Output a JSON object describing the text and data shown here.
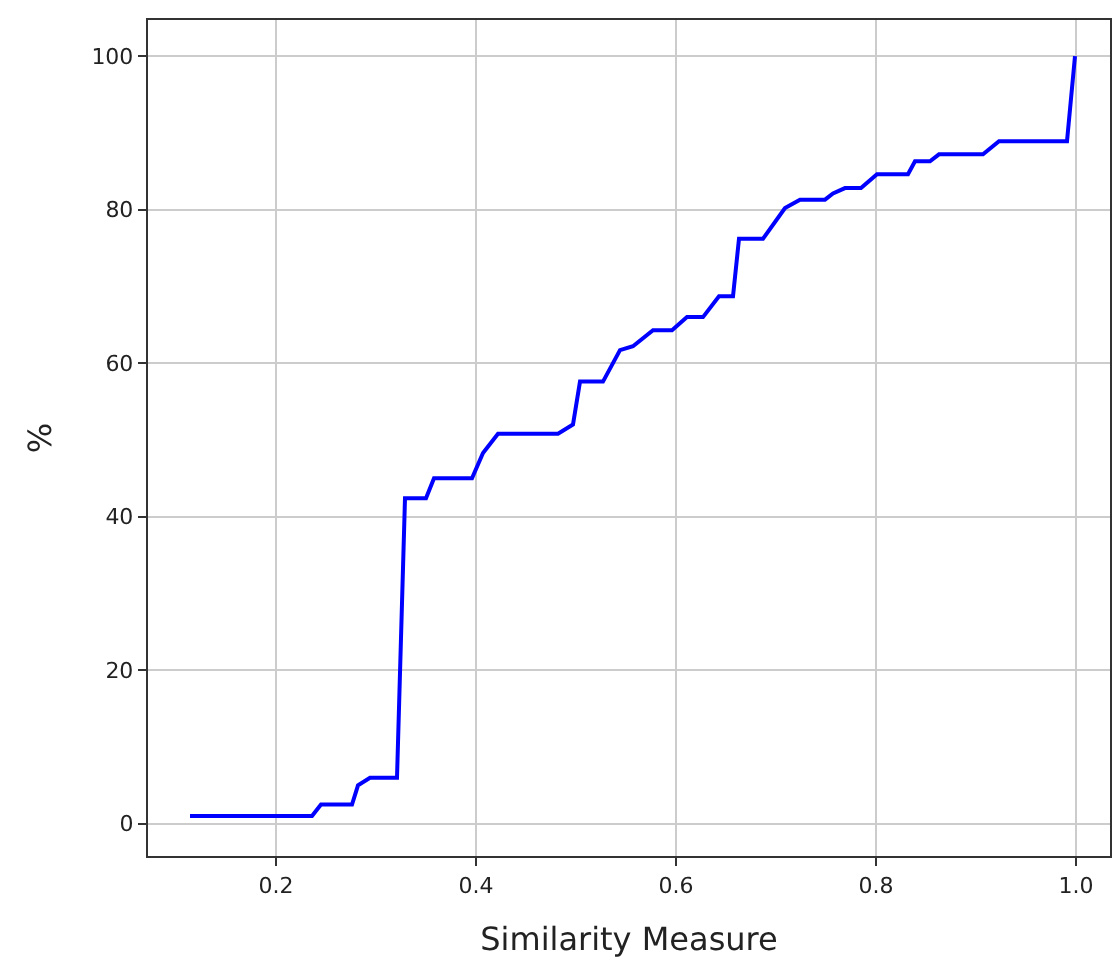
{
  "chart_data": {
    "type": "line",
    "xlabel": "Similarity Measure",
    "ylabel": "%",
    "x": [
      0.114,
      0.236,
      0.245,
      0.276,
      0.282,
      0.294,
      0.321,
      0.329,
      0.35,
      0.358,
      0.396,
      0.407,
      0.422,
      0.482,
      0.497,
      0.504,
      0.527,
      0.544,
      0.557,
      0.577,
      0.596,
      0.611,
      0.627,
      0.643,
      0.657,
      0.663,
      0.687,
      0.709,
      0.724,
      0.749,
      0.757,
      0.769,
      0.785,
      0.801,
      0.832,
      0.839,
      0.854,
      0.863,
      0.907,
      0.923,
      0.991,
      0.999
    ],
    "series": [
      {
        "color": "#0000ff",
        "values": [
          1,
          1,
          2.5,
          2.5,
          5,
          6,
          6,
          42.4,
          42.4,
          45,
          45,
          48.3,
          50.8,
          50.8,
          52,
          57.6,
          57.6,
          61.7,
          62.2,
          64.3,
          64.3,
          66,
          66,
          68.7,
          68.7,
          76.2,
          76.2,
          80.2,
          81.3,
          81.3,
          82.1,
          82.8,
          82.8,
          84.6,
          84.6,
          86.3,
          86.3,
          87.2,
          87.2,
          88.9,
          88.9,
          100
        ]
      }
    ],
    "xlim": [
      0.072,
      1.034
    ],
    "xticks": [
      0.2,
      0.4,
      0.6,
      0.8,
      {
        "value": 1,
        "label": "1.0"
      }
    ],
    "ylim": [
      -4.2,
      104.7
    ],
    "yticks": [
      0,
      20,
      40,
      60,
      80,
      100
    ],
    "grid": true,
    "marker": "none",
    "line_style": "solid"
  }
}
